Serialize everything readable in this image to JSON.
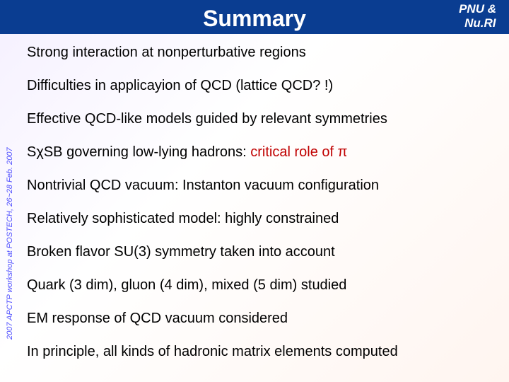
{
  "header": {
    "title": "Summary",
    "corner_line1": "PNU  &",
    "corner_line2": "Nu.RI"
  },
  "sidebar_text": "2007 APCTP workshop at POSTECH, 26~28 Feb. 2007",
  "bullets": {
    "b0": "Strong interaction at nonperturbative regions",
    "b1": "Difficulties in applicayion of QCD (lattice QCD? !)",
    "b2": "Effective QCD-like models guided by relevant symmetries",
    "b3_pre": "S",
    "b3_chi": "χ",
    "b3_mid": "SB governing low-lying hadrons: ",
    "b3_red": "critical role of ",
    "b3_pi": "π",
    "b4": "Nontrivial QCD vacuum: Instanton vacuum configuration",
    "b5": "Relatively sophisticated model: highly constrained",
    "b6": "Broken flavor SU(3) symmetry taken into account",
    "b7": "Quark (3 dim), gluon (4 dim), mixed (5 dim) studied",
    "b8": "EM response of QCD vacuum considered",
    "b9": "In principle, all kinds of hadronic matrix elements computed"
  },
  "colors": {
    "header_bg": "#0a3d91",
    "title_color": "#ffffff",
    "text_color": "#000000",
    "accent_red": "#c00000",
    "sidebar_color": "#5050ff"
  }
}
